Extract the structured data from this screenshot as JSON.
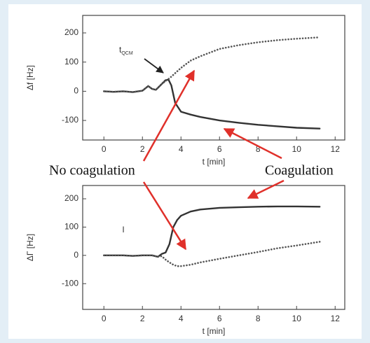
{
  "chart_data": [
    {
      "type": "line",
      "xlabel": "t [min]",
      "ylabel": "Δf [Hz]",
      "marker_label": {
        "text": "t",
        "subscript": "QCM"
      },
      "x": [
        0,
        0.5,
        1,
        1.5,
        2,
        2.3,
        2.5,
        2.7,
        3,
        3.2,
        3.35,
        3.5,
        3.7,
        4,
        4.5,
        5,
        6,
        7,
        8,
        9,
        10,
        11.2
      ],
      "series": [
        {
          "color": "#333333",
          "style": "solid",
          "values": [
            0,
            -2,
            0,
            -3,
            2,
            18,
            8,
            5,
            25,
            38,
            40,
            20,
            -40,
            -70,
            -80,
            -88,
            -100,
            -108,
            -115,
            -120,
            -125,
            -128
          ]
        },
        {
          "color": "#555555",
          "style": "dotted",
          "values": [
            0,
            -2,
            0,
            -3,
            2,
            18,
            8,
            5,
            25,
            35,
            42,
            50,
            62,
            80,
            105,
            120,
            145,
            158,
            168,
            175,
            180,
            185
          ]
        }
      ],
      "xlim": [
        -1.1,
        12.5
      ],
      "xticks": [
        0,
        2,
        4,
        6,
        8,
        10,
        12
      ],
      "ylim": [
        -167,
        260
      ],
      "yticks": [
        -100,
        0,
        100,
        200
      ]
    },
    {
      "type": "line",
      "xlabel": "t [min]",
      "ylabel": "ΔΓ [Hz]",
      "annotation": "I",
      "x": [
        0,
        0.5,
        1,
        1.5,
        2,
        2.5,
        2.8,
        3,
        3.2,
        3.4,
        3.6,
        3.8,
        4,
        4.5,
        5,
        6,
        7,
        8,
        9,
        10,
        11.2
      ],
      "series": [
        {
          "color": "#333333",
          "style": "solid",
          "values": [
            0,
            0,
            0,
            -2,
            0,
            0,
            -5,
            5,
            10,
            40,
            100,
            125,
            140,
            155,
            162,
            168,
            170,
            172,
            173,
            173,
            172
          ]
        },
        {
          "color": "#555555",
          "style": "dotted",
          "values": [
            0,
            0,
            0,
            -2,
            0,
            0,
            -5,
            -3,
            -15,
            -25,
            -33,
            -38,
            -38,
            -33,
            -25,
            -12,
            0,
            12,
            25,
            35,
            48
          ]
        }
      ],
      "xlim": [
        -1.1,
        12.5
      ],
      "xticks": [
        0,
        2,
        4,
        6,
        8,
        10,
        12
      ],
      "ylim": [
        -191,
        247
      ],
      "yticks": [
        -100,
        0,
        100,
        200
      ]
    }
  ],
  "annotations": [
    "No coagulation",
    "Coagulation"
  ]
}
